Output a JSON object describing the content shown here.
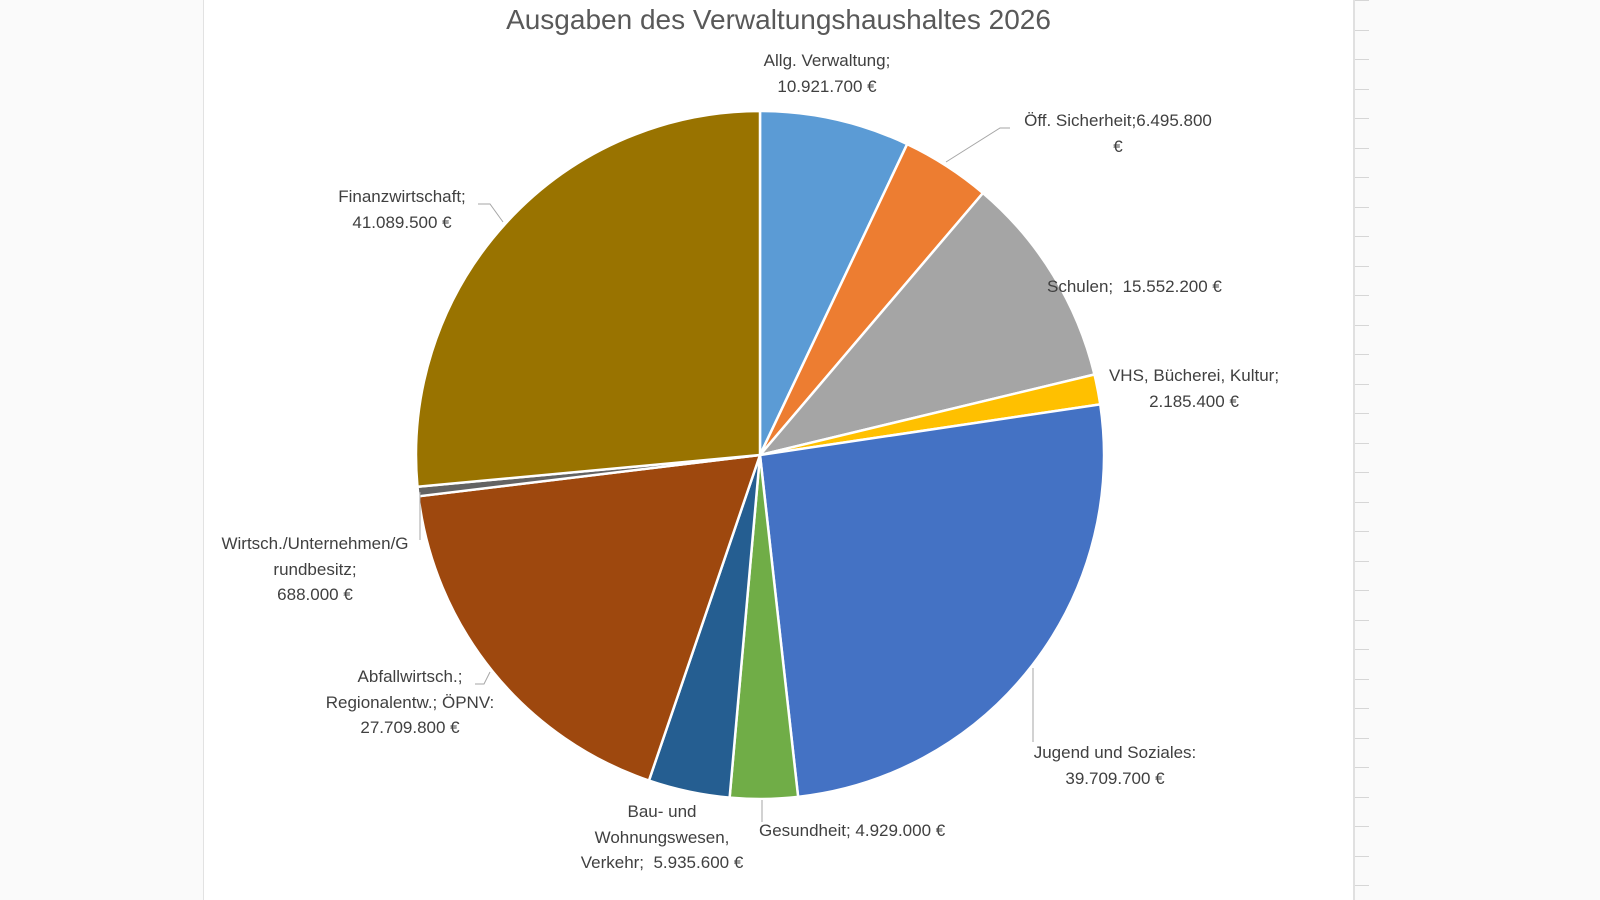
{
  "chart_data": {
    "type": "pie",
    "title": "Ausgaben des Verwaltungshaushaltes 2026",
    "start_angle": "12 o'clock, clockwise",
    "legend": "none (data labels)",
    "slices": [
      {
        "name": "Allg. Verwaltung",
        "value": 10921700,
        "label": [
          "Allg. Verwaltung;",
          "10.921.700 €"
        ],
        "color": "#5B9BD5"
      },
      {
        "name": "Öff. Sicherheit",
        "value": 6495800,
        "label": [
          "Öff. Sicherheit;6.495.800",
          "€"
        ],
        "color": "#ED7D31"
      },
      {
        "name": "Schulen",
        "value": 15552200,
        "label": [
          "Schulen;  15.552.200 €"
        ],
        "color": "#A5A5A5"
      },
      {
        "name": "VHS, Bücherei, Kultur",
        "value": 2185400,
        "label": [
          "VHS, Bücherei, Kultur;",
          "2.185.400 €"
        ],
        "color": "#FFC000"
      },
      {
        "name": "Jugend und Soziales",
        "value": 39709700,
        "label": [
          "Jugend und Soziales:",
          "39.709.700 €"
        ],
        "color": "#4472C4"
      },
      {
        "name": "Gesundheit",
        "value": 4929000,
        "label": [
          "Gesundheit; 4.929.000 €"
        ],
        "color": "#70AD47"
      },
      {
        "name": "Bau- und Wohnungswesen, Verkehr",
        "value": 5935600,
        "label": [
          "Bau- und",
          "Wohnungswesen,",
          "Verkehr;  5.935.600 €"
        ],
        "color": "#255E91"
      },
      {
        "name": "Abfallwirtsch.; Regionalentw.; ÖPNV",
        "value": 27709800,
        "label": [
          "Abfallwirtsch.;",
          "Regionalentw.; ÖPNV:",
          "27.709.800 €"
        ],
        "color": "#9E480E"
      },
      {
        "name": "Wirtsch./Unternehmen/Grundbesitz",
        "value": 688000,
        "label": [
          "Wirtsch./Unternehmen/G",
          "rundbesitz;",
          "688.000 €"
        ],
        "color": "#636363"
      },
      {
        "name": "Finanzwirtschaft",
        "value": 41089500,
        "label": [
          "Finanzwirtschaft;",
          "41.089.500 €"
        ],
        "color": "#997300"
      }
    ]
  }
}
